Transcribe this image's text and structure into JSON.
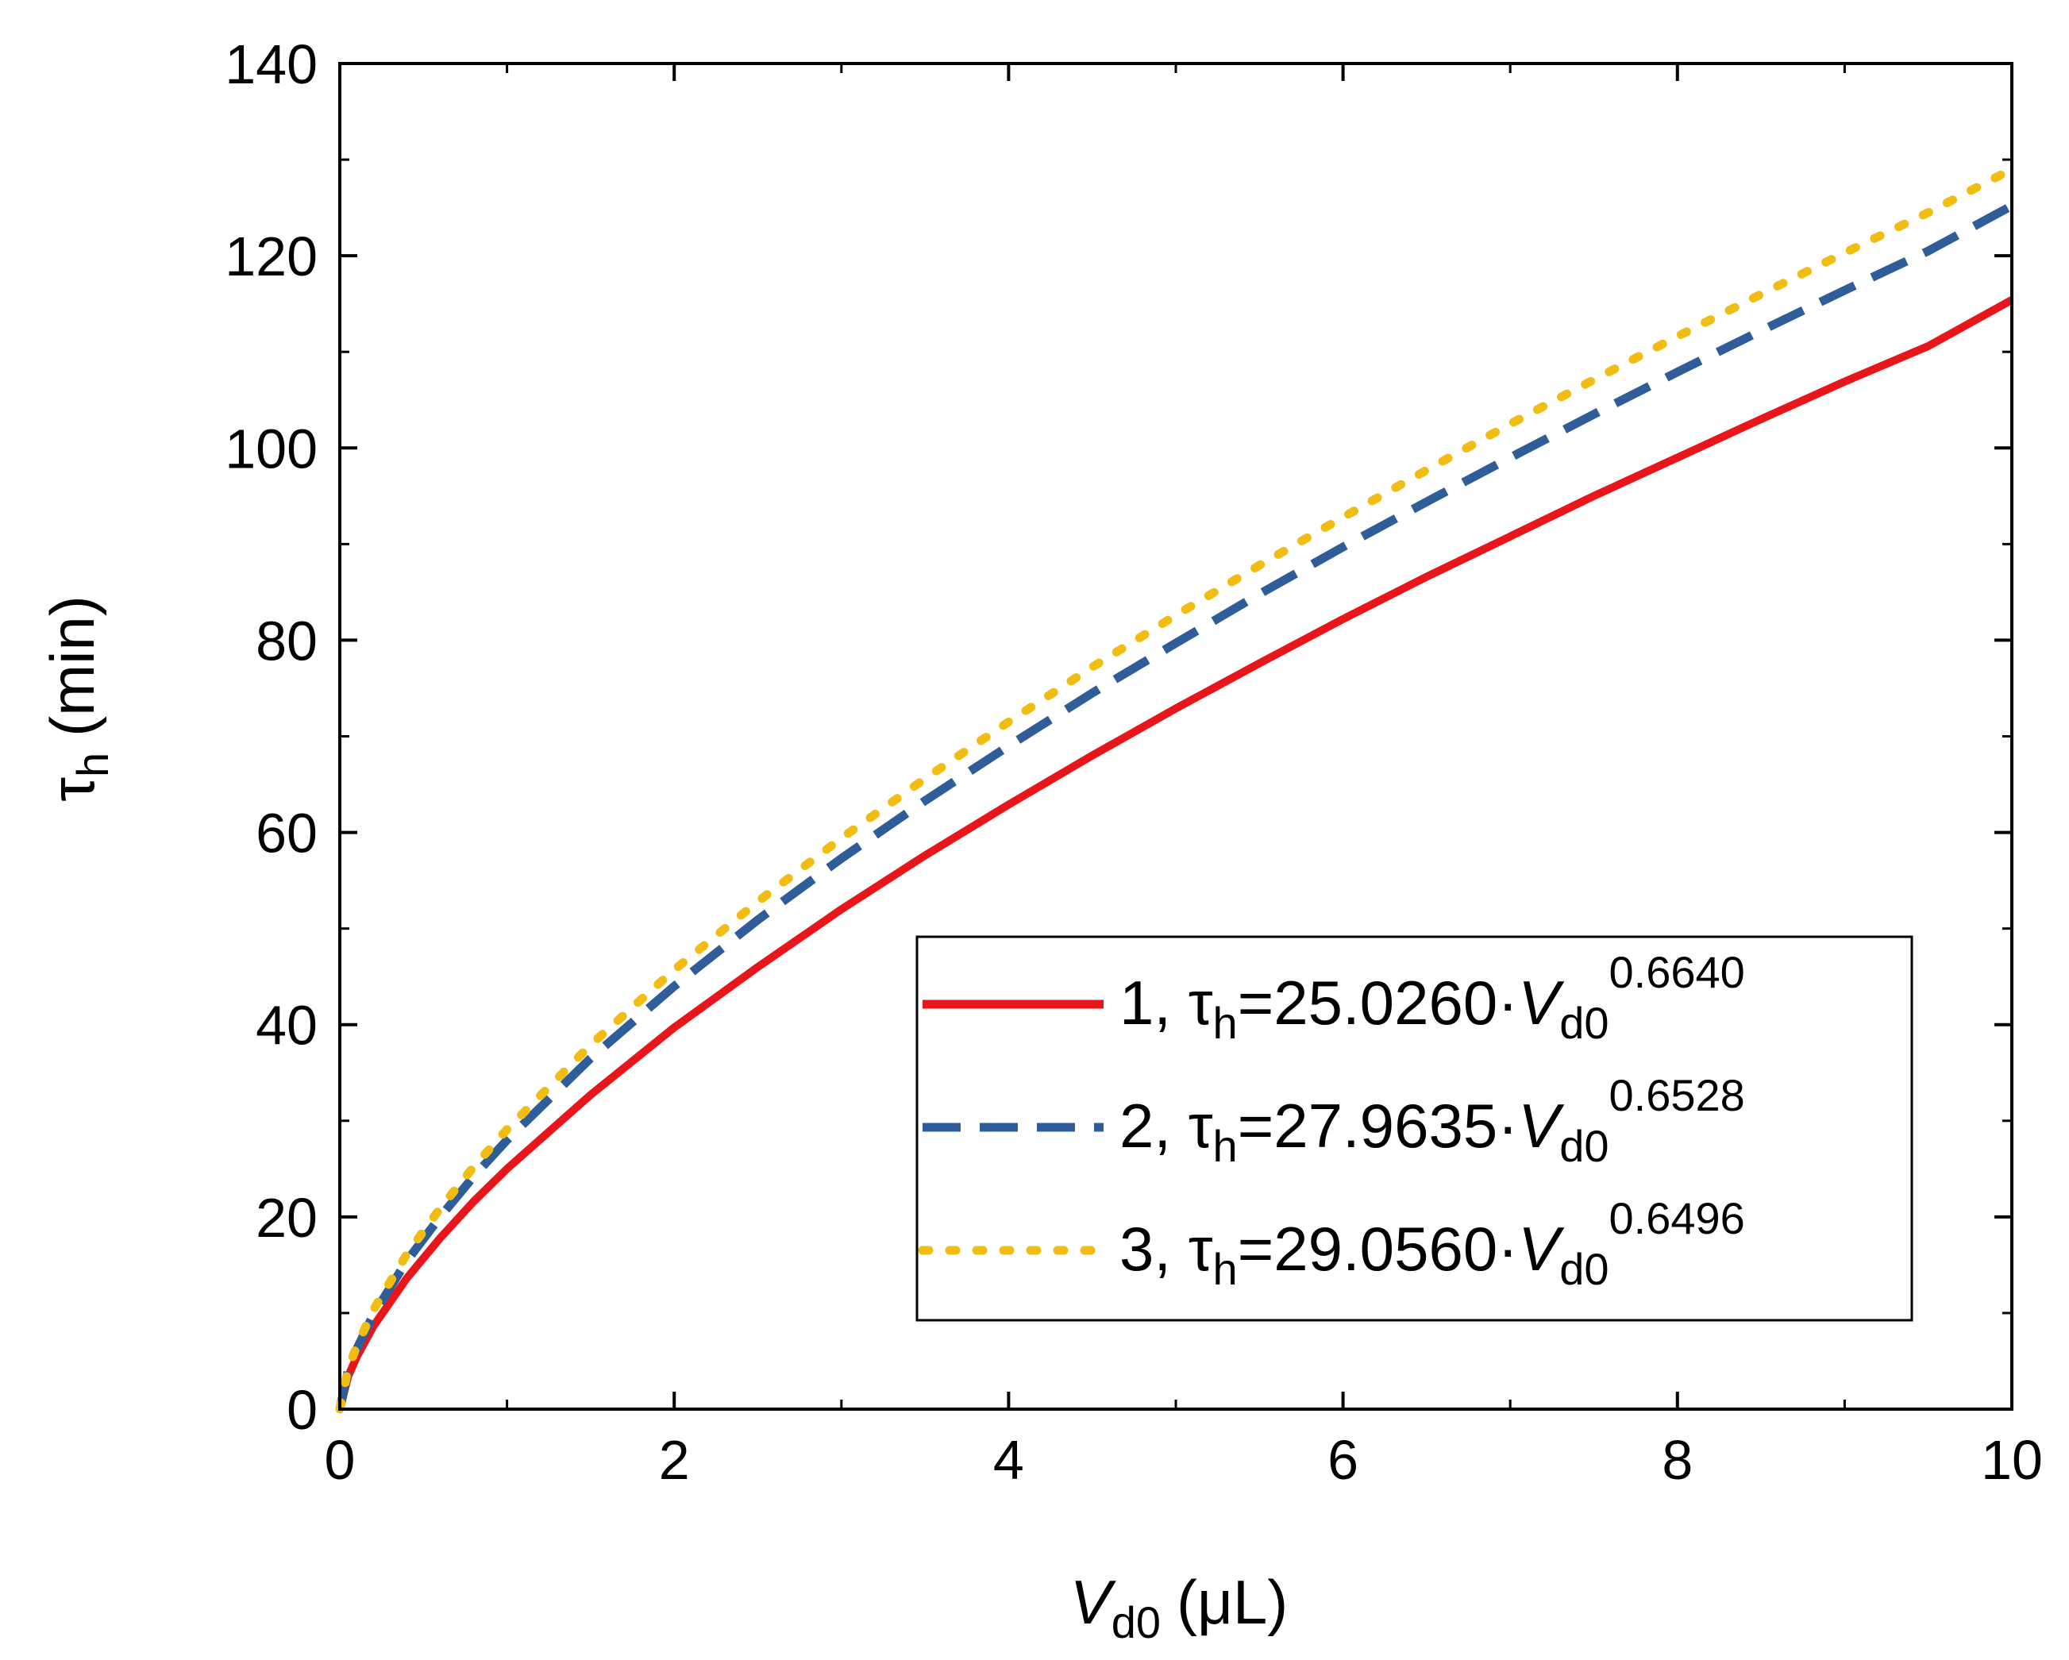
{
  "chart_data": {
    "type": "line",
    "xlabel": {
      "main": "V",
      "sub": "d0",
      "unit": "(μL)"
    },
    "ylabel": {
      "main": "τ",
      "sub": "h",
      "unit": "(min)"
    },
    "xlim": [
      0,
      10
    ],
    "ylim": [
      0,
      140
    ],
    "x_ticks": [
      0,
      2,
      4,
      6,
      8,
      10
    ],
    "y_ticks": [
      0,
      20,
      40,
      60,
      80,
      100,
      120,
      140
    ],
    "x_minor_step": 1,
    "y_minor_step": 10,
    "grid": false,
    "legend_position": "bottom-right",
    "series": [
      {
        "name": "1",
        "coefficient": 25.026,
        "exponent": 0.664,
        "legend": {
          "prefix": "1, τ",
          "sub": "h",
          "eq": "=25.0260·",
          "var": "V",
          "var_sub": "d0",
          "sup": "0.6640"
        },
        "color": "#e8161a",
        "style": "solid",
        "x": [
          0,
          0.05,
          0.1,
          0.2,
          0.4,
          0.6,
          0.8,
          1,
          1.5,
          2,
          2.5,
          3,
          3.5,
          4,
          4.5,
          5,
          5.5,
          6,
          6.5,
          7,
          7.5,
          8,
          8.5,
          9,
          9.5,
          10
        ],
        "y": [
          0,
          3.4,
          5.4,
          8.6,
          13.6,
          17.8,
          21.6,
          25.0,
          32.7,
          39.7,
          46.0,
          52.0,
          57.6,
          62.9,
          68.0,
          72.9,
          77.6,
          82.2,
          86.6,
          90.8,
          95.0,
          99.0,
          103.0,
          106.9,
          110.6,
          115.4
        ]
      },
      {
        "name": "2",
        "coefficient": 27.9635,
        "exponent": 0.6528,
        "legend": {
          "prefix": "2, τ",
          "sub": "h",
          "eq": "=27.9635·",
          "var": "V",
          "var_sub": "d0",
          "sup": "0.6528"
        },
        "color": "#2e5d9a",
        "style": "dashed",
        "x": [
          0,
          0.05,
          0.1,
          0.2,
          0.4,
          0.6,
          0.8,
          1,
          1.5,
          2,
          2.5,
          3,
          3.5,
          4,
          4.5,
          5,
          5.5,
          6,
          6.5,
          7,
          7.5,
          8,
          8.5,
          9,
          9.5,
          10
        ],
        "y": [
          0,
          4.0,
          6.2,
          9.8,
          15.4,
          20.0,
          24.2,
          28.0,
          36.5,
          44.0,
          50.9,
          57.3,
          63.3,
          69.0,
          74.5,
          79.7,
          84.8,
          89.7,
          94.4,
          99.0,
          103.5,
          107.9,
          112.2,
          116.4,
          120.5,
          125.2
        ]
      },
      {
        "name": "3",
        "coefficient": 29.056,
        "exponent": 0.6496,
        "legend": {
          "prefix": "3, τ",
          "sub": "h",
          "eq": "=29.0560·",
          "var": "V",
          "var_sub": "d0",
          "sup": "0.6496"
        },
        "color": "#f2bd12",
        "style": "dotted",
        "x": [
          0,
          0.05,
          0.1,
          0.2,
          0.4,
          0.6,
          0.8,
          1,
          1.5,
          2,
          2.5,
          3,
          3.5,
          4,
          4.5,
          5,
          5.5,
          6,
          6.5,
          7,
          7.5,
          8,
          8.5,
          9,
          9.5,
          10
        ],
        "y": [
          0,
          4.2,
          6.5,
          10.3,
          16.1,
          20.9,
          25.2,
          29.1,
          37.9,
          45.7,
          52.8,
          59.4,
          65.6,
          71.5,
          77.2,
          82.6,
          87.8,
          92.8,
          97.7,
          102.5,
          107.1,
          111.6,
          116.0,
          120.3,
          124.5,
          129.0
        ]
      }
    ]
  }
}
